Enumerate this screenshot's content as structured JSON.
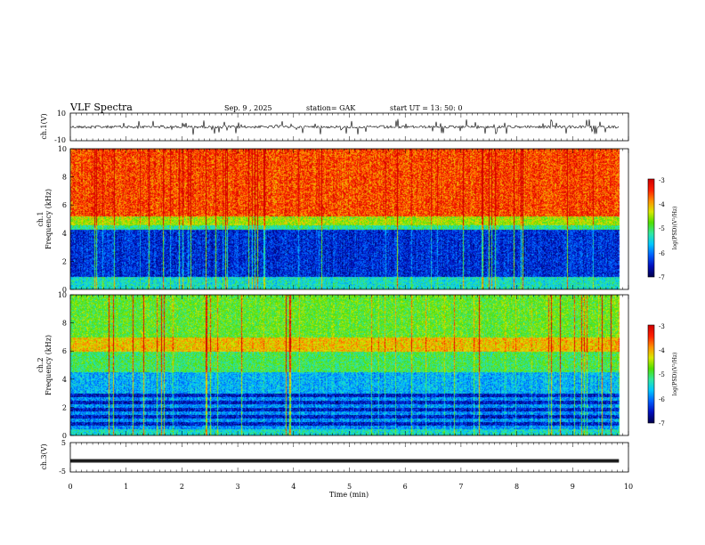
{
  "header": {
    "title": "VLF  Spectra",
    "date": "Sep. 9  , 2025",
    "station": "station= GAK",
    "start": "start  UT  =   13: 50: 0"
  },
  "colors": {
    "background": "#ffffff",
    "axis": "#000000",
    "colormap": [
      "#000050",
      "#0010c0",
      "#0060ff",
      "#00c8ff",
      "#30e8a0",
      "#50e000",
      "#d8e800",
      "#ff9000",
      "#ff2000",
      "#d00000"
    ]
  },
  "chart_data": [
    {
      "type": "line",
      "name": "waveform-ch1",
      "ylabel": "ch.1(V)",
      "ylim": [
        -10,
        10
      ],
      "ytick_labels": [
        "10",
        "-10"
      ],
      "baseline": 0,
      "xlim": [
        0,
        10
      ]
    },
    {
      "type": "heatmap",
      "name": "spectrogram-ch1",
      "ylabel": "ch.1\nFrequency (kHz)",
      "ylabel_line1": "ch.1",
      "ylabel_line2": "Frequency  (kHz)",
      "ylim": [
        0,
        10
      ],
      "ytick_labels": [
        "10",
        "8",
        "6",
        "4",
        "2",
        "0"
      ],
      "xlim": [
        0,
        10
      ],
      "data_extent_min": 9.83,
      "colorbar": {
        "label": "log(PSD)(V²/Hz)",
        "range": [
          -7,
          -3
        ],
        "tick_labels": [
          "-3",
          "-4",
          "-5",
          "-6",
          "-7"
        ]
      },
      "description_bands": {
        "high_psd_above_khz": 4.8,
        "low_psd_band_khz": [
          0.8,
          4.4
        ]
      }
    },
    {
      "type": "heatmap",
      "name": "spectrogram-ch2",
      "ylabel_line1": "ch.2",
      "ylabel_line2": "Frequency  (kHz)",
      "ylim": [
        0,
        10
      ],
      "ytick_labels": [
        "10",
        "8",
        "6",
        "4",
        "2",
        "0"
      ],
      "xlim": [
        0,
        10
      ],
      "data_extent_min": 9.83,
      "colorbar": {
        "label": "log(PSD)(V²/Hz)",
        "range": [
          -7,
          -3
        ],
        "tick_labels": [
          "-3",
          "-4",
          "-5",
          "-6",
          "-7"
        ]
      },
      "description_bands": {
        "emission_line_khz": 6.2,
        "low_psd_band_khz": [
          0.5,
          4.0
        ]
      }
    },
    {
      "type": "line",
      "name": "waveform-ch3",
      "ylabel": "ch.3(V)",
      "ylim": [
        -5,
        5
      ],
      "ytick_labels": [
        "5",
        "-5"
      ],
      "baseline": -1.2,
      "xlim": [
        0,
        10
      ],
      "xlabel": "Time  (min)",
      "xtick_labels": [
        "0",
        "1",
        "2",
        "3",
        "4",
        "5",
        "6",
        "7",
        "8",
        "9",
        "10"
      ]
    }
  ]
}
